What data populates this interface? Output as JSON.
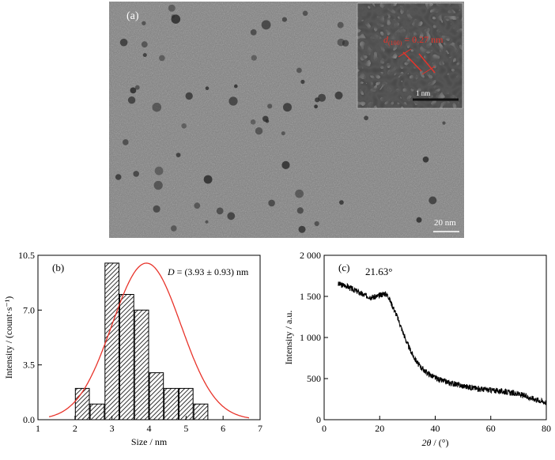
{
  "panel_a": {
    "label": "(a)",
    "scale_bar": "20 nm",
    "inset_scale_bar": "1 nm",
    "d_symbol": "d",
    "d_subscript": "(100)",
    "d_value": " = 0.27 nm",
    "colors": {
      "annotation": "#e8332a",
      "scale_bar": "#ffffff"
    }
  },
  "chart_data": [
    {
      "type": "bar",
      "panel_label": "(b)",
      "xlabel": "Size / nm",
      "ylabel": "Intensity / (count·s⁻¹)",
      "xlim": [
        1,
        7
      ],
      "ylim": [
        0,
        10.5
      ],
      "xticks": [
        1,
        2,
        3,
        4,
        5,
        6,
        7
      ],
      "yticks": [
        0.0,
        3.5,
        7.0,
        10.5
      ],
      "xtick_labels": [
        "1",
        "2",
        "3",
        "4",
        "5",
        "6",
        "7"
      ],
      "ytick_labels": [
        "0.0",
        "3.5",
        "7.0",
        "10.5"
      ],
      "bins": [
        {
          "x0": 2.0,
          "x1": 2.4,
          "value": 2
        },
        {
          "x0": 2.4,
          "x1": 2.8,
          "value": 1
        },
        {
          "x0": 2.8,
          "x1": 3.2,
          "value": 10
        },
        {
          "x0": 3.2,
          "x1": 3.6,
          "value": 8
        },
        {
          "x0": 3.6,
          "x1": 4.0,
          "value": 7
        },
        {
          "x0": 4.0,
          "x1": 4.4,
          "value": 3
        },
        {
          "x0": 4.4,
          "x1": 4.8,
          "value": 2
        },
        {
          "x0": 4.8,
          "x1": 5.2,
          "value": 2
        },
        {
          "x0": 5.2,
          "x1": 5.6,
          "value": 1
        }
      ],
      "fit": {
        "mean": 3.93,
        "sigma": 0.93,
        "peak": 10.0
      },
      "annotation_symbol": "D",
      "annotation_value": " = (3.93 ± 0.93) nm",
      "colors": {
        "fit": "#e8332a",
        "bar_edge": "#000000"
      }
    },
    {
      "type": "line",
      "panel_label": "(c)",
      "xlabel_symbol": "2θ",
      "xlabel_unit": " / (°)",
      "ylabel": "Intensity / a.u.",
      "xlim": [
        0,
        80
      ],
      "ylim": [
        0,
        2000
      ],
      "xticks": [
        0,
        20,
        40,
        60,
        80
      ],
      "yticks": [
        0,
        500,
        1000,
        1500,
        2000
      ],
      "xtick_labels": [
        "0",
        "20",
        "40",
        "60",
        "80"
      ],
      "ytick_labels": [
        "0",
        "500",
        "1 000",
        "1 500",
        "2 000"
      ],
      "peak_label": "21.63°",
      "series": [
        {
          "x": [
            5,
            8,
            10,
            12,
            14,
            16,
            18,
            20,
            21.63,
            23,
            24,
            26,
            28,
            30,
            32,
            34,
            36,
            38,
            40,
            42,
            45,
            50,
            55,
            60,
            65,
            70,
            75,
            80
          ],
          "y": [
            1650,
            1630,
            1590,
            1560,
            1520,
            1500,
            1490,
            1510,
            1540,
            1510,
            1430,
            1280,
            1100,
            920,
            780,
            670,
            600,
            550,
            510,
            480,
            450,
            410,
            380,
            360,
            340,
            310,
            260,
            210
          ]
        }
      ],
      "colors": {
        "line": "#000000"
      }
    }
  ]
}
